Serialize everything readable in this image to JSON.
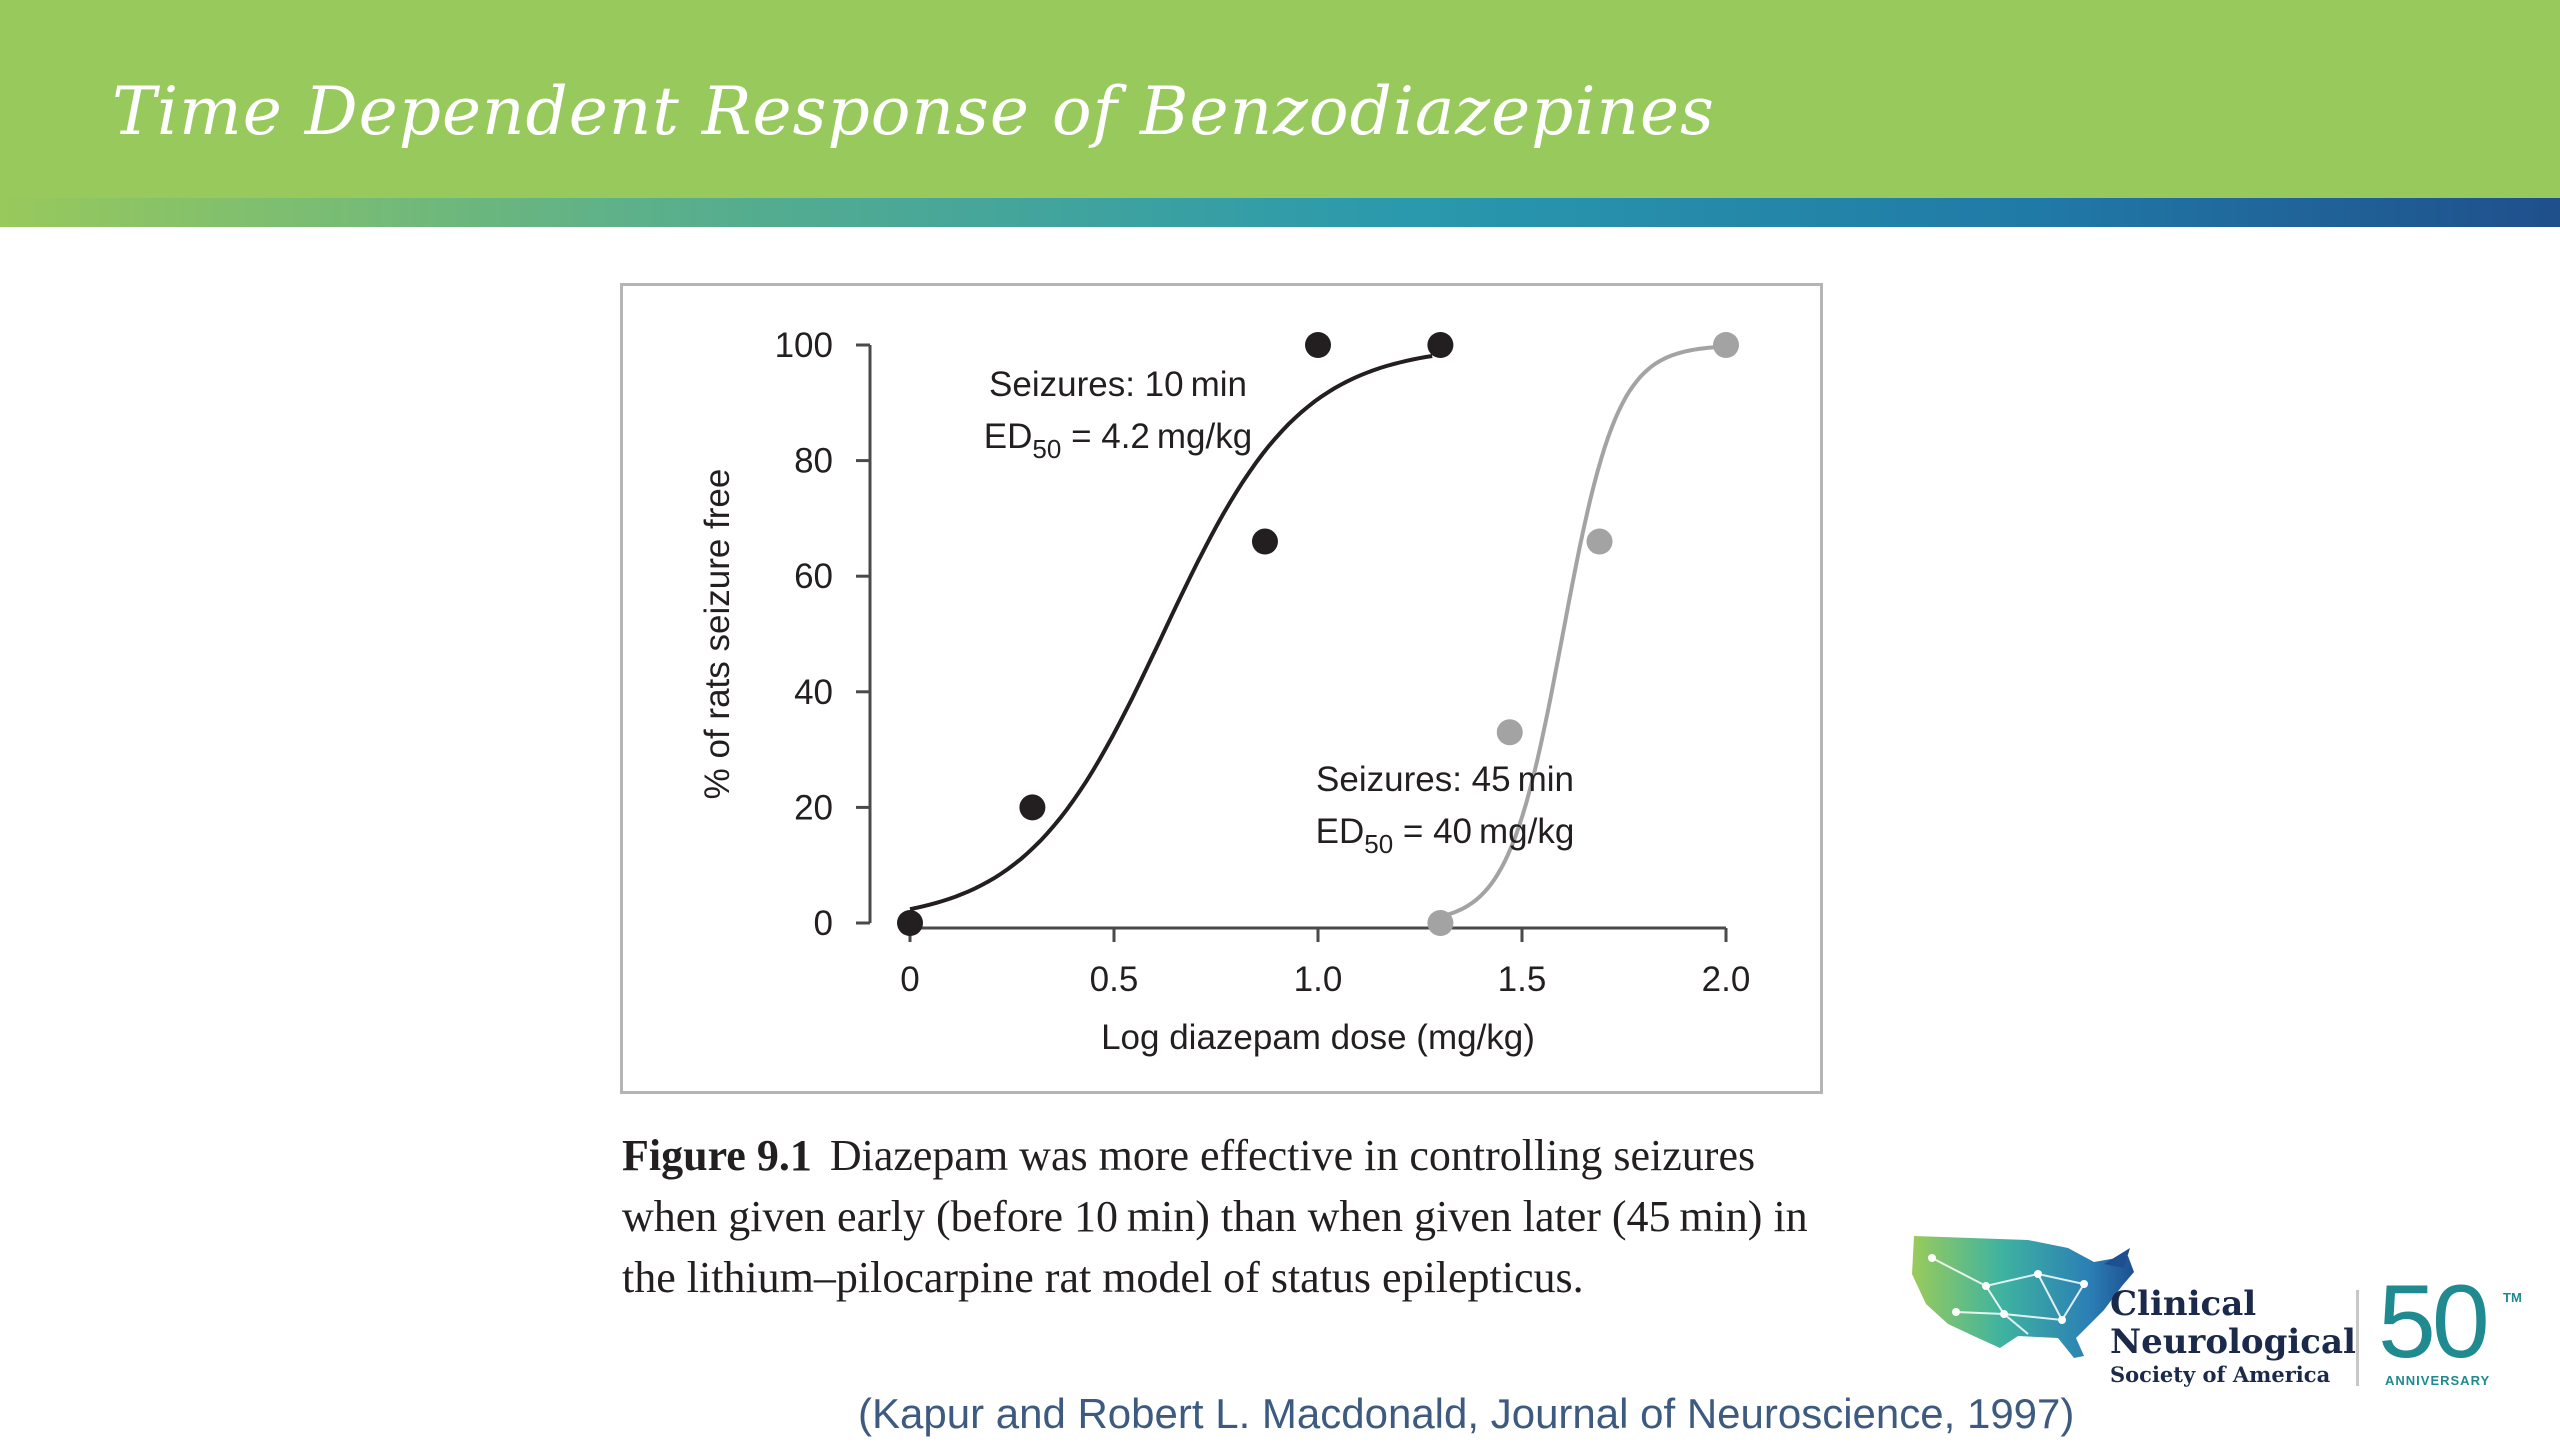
{
  "slide": {
    "title": "Time Dependent Response of Benzodiazepines"
  },
  "caption": {
    "figure_label": "Figure 9.1",
    "text": "Diazepam was more effective in controlling seizures when given early (before 10 min) than when given later (45 min) in the lithium–pilocarpine rat model of status epilepticus."
  },
  "citation": "(Kapur and Robert L. Macdonald, Journal of Neuroscience, 1997)",
  "logo": {
    "line1": "Clinical",
    "line2": "Neurological",
    "line3": "Society of America",
    "anniversary_number": "50",
    "anniversary_tm": "TM",
    "anniversary_label": "ANNIVERSARY"
  },
  "chart_data": {
    "type": "scatter",
    "title": "",
    "xlabel": "Log diazepam dose (mg/kg)",
    "ylabel": "% of rats seizure free",
    "xlim": [
      0,
      2.0
    ],
    "ylim": [
      0,
      100
    ],
    "x_ticks": [
      "0",
      "0.5",
      "1.0",
      "1.5",
      "2.0"
    ],
    "y_ticks": [
      "0",
      "20",
      "40",
      "60",
      "80",
      "100"
    ],
    "grid": false,
    "series": [
      {
        "color": "#231f20",
        "points": [
          [
            0,
            0
          ],
          [
            0.3,
            20
          ],
          [
            0.87,
            66
          ],
          [
            1.0,
            100
          ],
          [
            1.3,
            100
          ]
        ],
        "fit_curve": {
          "x_range": [
            0,
            1.28
          ],
          "ed50_log": 0.62,
          "slope": 2.6
        },
        "annotation": {
          "line1": "Seizures: 10 min",
          "line2_prefix": "ED",
          "line2_sub": "50",
          "line2_suffix": " = 4.2 mg/kg"
        }
      },
      {
        "color": "#a3a3a3",
        "points": [
          [
            1.3,
            0
          ],
          [
            1.47,
            33
          ],
          [
            1.69,
            66
          ],
          [
            2.0,
            100
          ]
        ],
        "fit_curve": {
          "x_range": [
            1.3,
            2.0
          ],
          "ed50_log": 1.6,
          "slope": 6.5
        },
        "annotation": {
          "line1": "Seizures: 45 min",
          "line2_prefix": "ED",
          "line2_sub": "50",
          "line2_suffix": " = 40 mg/kg"
        }
      }
    ]
  }
}
